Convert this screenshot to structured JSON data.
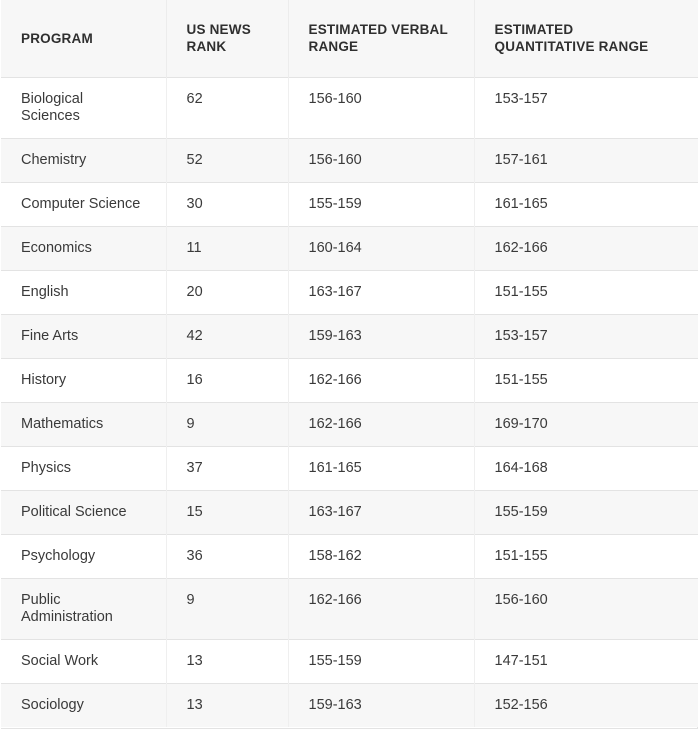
{
  "table": {
    "headers": [
      [
        "PROGRAM"
      ],
      [
        "US NEWS",
        "RANK"
      ],
      [
        "ESTIMATED VERBAL",
        "RANGE"
      ],
      [
        "ESTIMATED",
        "QUANTITATIVE RANGE"
      ]
    ],
    "rows": [
      {
        "program": [
          "Biological",
          "Sciences"
        ],
        "rank": "62",
        "verbal": "156-160",
        "quant": "153-157"
      },
      {
        "program": [
          "Chemistry"
        ],
        "rank": "52",
        "verbal": "156-160",
        "quant": "157-161"
      },
      {
        "program": [
          "Computer Science"
        ],
        "rank": "30",
        "verbal": "155-159",
        "quant": "161-165"
      },
      {
        "program": [
          "Economics"
        ],
        "rank": "11",
        "verbal": "160-164",
        "quant": "162-166"
      },
      {
        "program": [
          "English"
        ],
        "rank": "20",
        "verbal": "163-167",
        "quant": "151-155"
      },
      {
        "program": [
          "Fine Arts"
        ],
        "rank": "42",
        "verbal": "159-163",
        "quant": "153-157"
      },
      {
        "program": [
          "History"
        ],
        "rank": "16",
        "verbal": "162-166",
        "quant": "151-155"
      },
      {
        "program": [
          "Mathematics"
        ],
        "rank": "9",
        "verbal": "162-166",
        "quant": "169-170"
      },
      {
        "program": [
          "Physics"
        ],
        "rank": "37",
        "verbal": "161-165",
        "quant": "164-168"
      },
      {
        "program": [
          "Political Science"
        ],
        "rank": "15",
        "verbal": "163-167",
        "quant": "155-159"
      },
      {
        "program": [
          "Psychology"
        ],
        "rank": "36",
        "verbal": "158-162",
        "quant": "151-155"
      },
      {
        "program": [
          "Public",
          "Administration"
        ],
        "rank": "9",
        "verbal": "162-166",
        "quant": "156-160"
      },
      {
        "program": [
          "Social Work"
        ],
        "rank": "13",
        "verbal": "155-159",
        "quant": "147-151"
      },
      {
        "program": [
          "Sociology"
        ],
        "rank": "13",
        "verbal": "159-163",
        "quant": "152-156"
      }
    ]
  }
}
